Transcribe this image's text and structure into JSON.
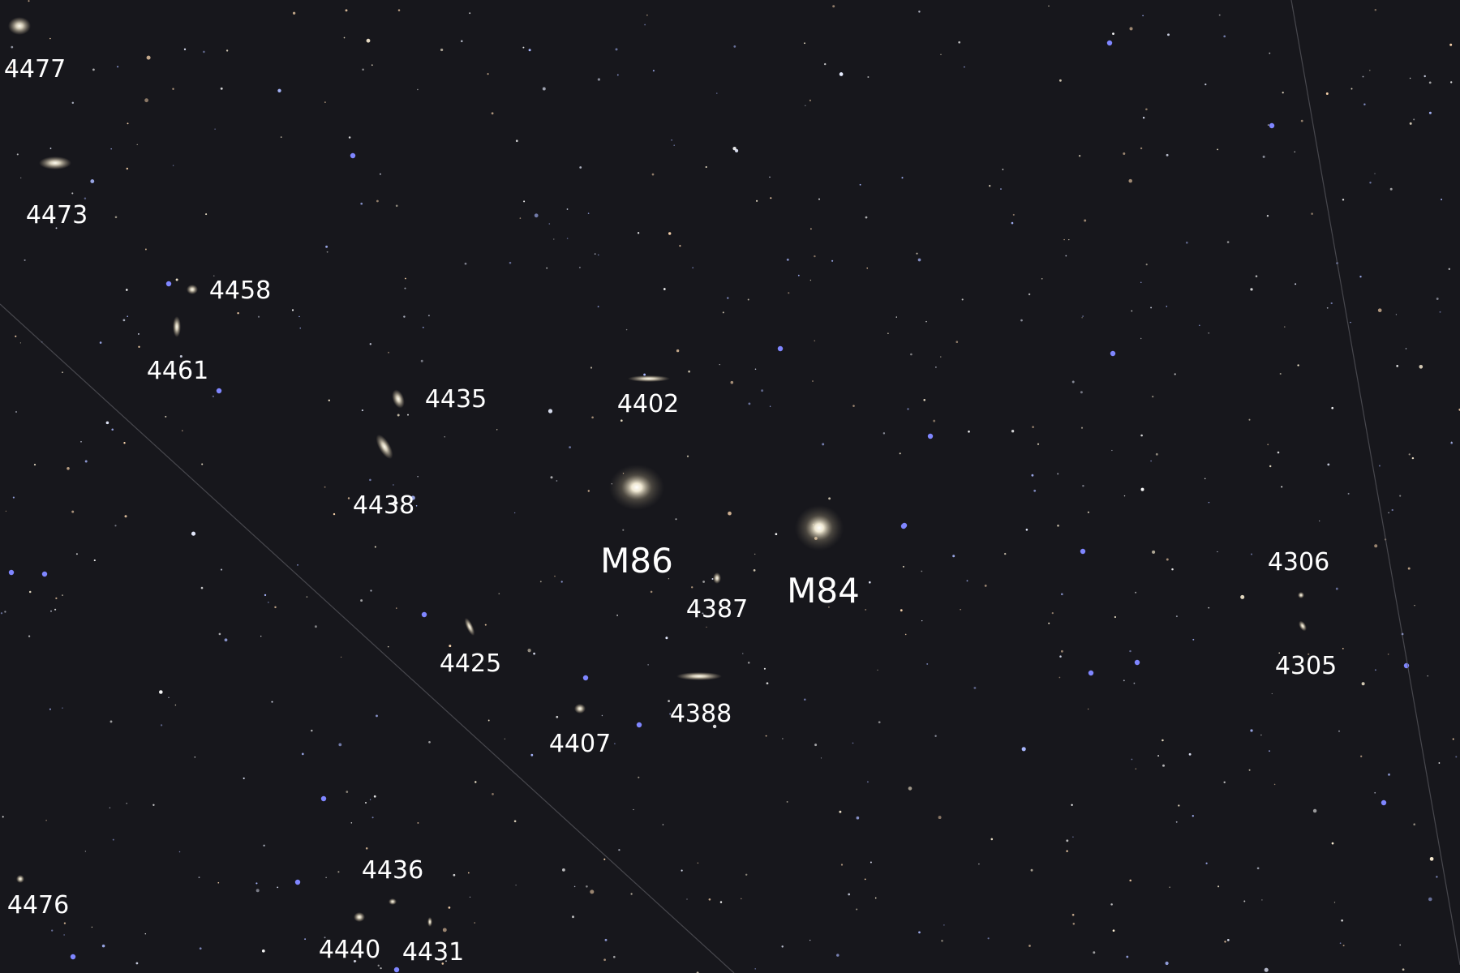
{
  "image": {
    "background_color": "#17171c",
    "galaxy_color": "#f3ead2",
    "star_colors": [
      "#ffffff",
      "#e7ecff",
      "#fff2d6",
      "#ffd9b0",
      "#aab8ff"
    ],
    "blue_star_color": "#7f86ff",
    "satellite_trail_color": "#6b6b70"
  },
  "labels": {
    "ngc4477": "4477",
    "ngc4473": "4473",
    "ngc4458": "4458",
    "ngc4461": "4461",
    "ngc4435": "4435",
    "ngc4438": "4438",
    "ngc4402": "4402",
    "m86": "M86",
    "m84": "M84",
    "ngc4387": "4387",
    "ngc4425": "4425",
    "ngc4388": "4388",
    "ngc4407": "4407",
    "ngc4306": "4306",
    "ngc4305": "4305",
    "ngc4436": "4436",
    "ngc4476": "4476",
    "ngc4440": "4440",
    "ngc4431": "4431"
  }
}
